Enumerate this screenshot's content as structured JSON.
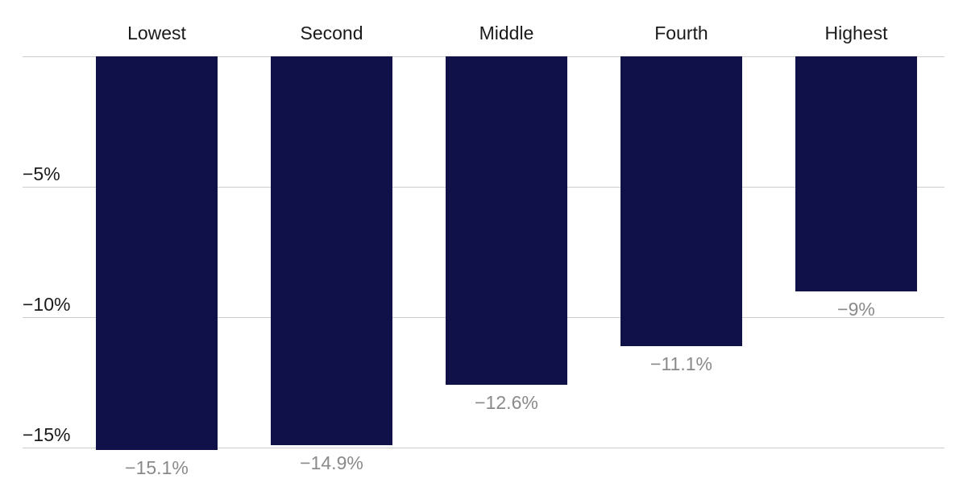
{
  "chart_data": {
    "type": "bar",
    "title": "",
    "xlabel": "",
    "ylabel": "",
    "categories": [
      "Lowest",
      "Second",
      "Middle",
      "Fourth",
      "Highest"
    ],
    "values": [
      -15.1,
      -14.9,
      -12.6,
      -11.1,
      -9
    ],
    "value_labels": [
      "−15.1%",
      "−14.9%",
      "−12.6%",
      "−11.1%",
      "−9%"
    ],
    "unit": "%",
    "ylim": [
      -15,
      0
    ],
    "grid": true,
    "y_ticks": [
      {
        "value": 0,
        "label": ""
      },
      {
        "value": -5,
        "label": "−5%"
      },
      {
        "value": -10,
        "label": "−10%"
      },
      {
        "value": -15,
        "label": "−15%"
      }
    ],
    "colors": {
      "bar": "#101149",
      "gridline": "#cccccc",
      "category_label": "#1a1a1a",
      "tick_label": "#1a1a1a",
      "value_label": "#8a8a8a",
      "background": "#ffffff"
    }
  }
}
